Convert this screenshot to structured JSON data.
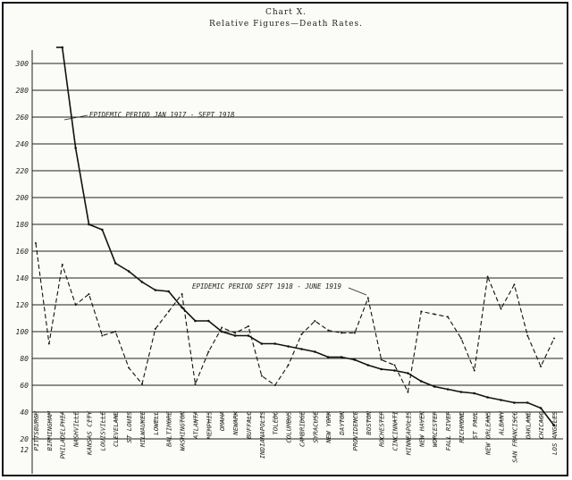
{
  "chart_data": {
    "type": "line",
    "title": "Chart X.",
    "subtitle": "Relative Figures—Death Rates.",
    "xlabel": "",
    "ylabel": "",
    "ylim": [
      12,
      310
    ],
    "y_ticks": [
      300,
      280,
      260,
      240,
      220,
      200,
      180,
      160,
      140,
      120,
      100,
      80,
      60,
      40,
      20,
      12
    ],
    "grid": true,
    "categories": [
      "Pittsburgh",
      "Birmingham",
      "Philadelphia",
      "Nashville",
      "Kansas City",
      "Louisville",
      "Cleveland",
      "St Louis",
      "Milwaukee",
      "Lowell",
      "Baltimore",
      "Washington",
      "Atlanta",
      "Memphis",
      "Omaha",
      "Newark",
      "Buffalo",
      "Indianapolis",
      "Toledo",
      "Columbus",
      "Cambridge",
      "Syracuse",
      "New York",
      "Dayton",
      "Providence",
      "Boston",
      "Rochester",
      "Cincinnati",
      "Minneapolis",
      "New Haven",
      "Worcester",
      "Fall River",
      "Richmond",
      "St Paul",
      "New Orleans",
      "Albany",
      "San Francisco",
      "Oakland",
      "Chicago",
      "Los Angeles"
    ],
    "series": [
      {
        "name": "Epidemic Period Jan 1917 - Sept 1918",
        "style": "solid",
        "values": [
          null,
          null,
          312,
          237,
          180,
          176,
          151,
          145,
          137,
          131,
          130,
          118,
          108,
          108,
          100,
          97,
          97,
          91,
          91,
          89,
          87,
          85,
          81,
          81,
          79,
          75,
          72,
          71,
          69,
          63,
          59,
          57,
          55,
          54,
          51,
          49,
          47,
          47,
          43,
          30
        ]
      },
      {
        "name": "Epidemic Period Sept 1918 - June 1919",
        "style": "dashed",
        "values": [
          166,
          91,
          150,
          120,
          128,
          97,
          100,
          73,
          61,
          102,
          115,
          128,
          61,
          85,
          103,
          99,
          104,
          67,
          60,
          75,
          98,
          108,
          101,
          99,
          99,
          125,
          79,
          75,
          55,
          115,
          113,
          111,
          95,
          71,
          141,
          117,
          135,
          97,
          74,
          95
        ]
      }
    ],
    "annotations": [
      "Epidemic Period Jan 1917 - Sept 1918",
      "Epidemic Period Sept 1918 - June 1919"
    ]
  }
}
